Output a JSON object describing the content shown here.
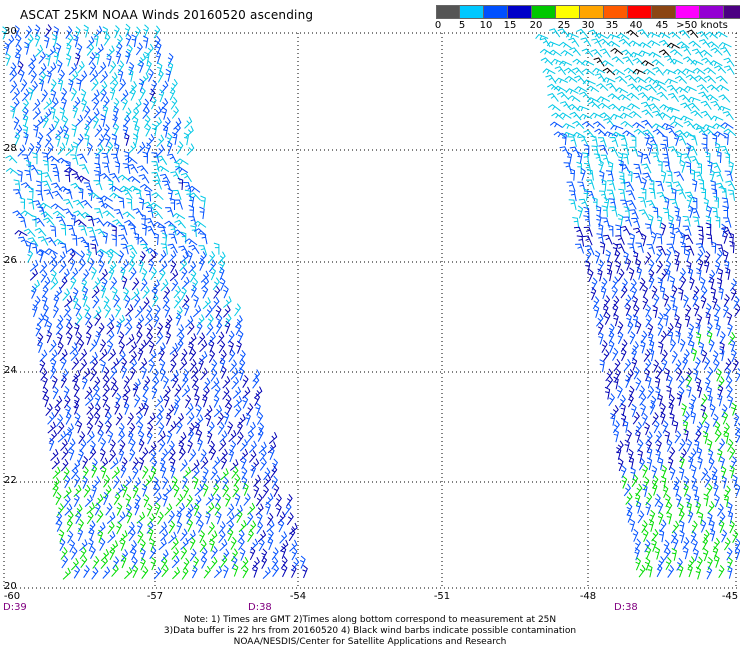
{
  "title": "ASCAT 25KM NOAA Winds 20160520 ascending",
  "legend": {
    "colors": [
      "#555555",
      "#00c8ff",
      "#0050ff",
      "#0000c8",
      "#00c800",
      "#ffff00",
      "#ffa500",
      "#ff5a00",
      "#ff0000",
      "#8b4513",
      "#ff00ff",
      "#9400d3",
      "#4b0082"
    ],
    "labels": [
      "0",
      "5",
      "10",
      "15",
      "20",
      "25",
      "30",
      "35",
      "40",
      "45",
      ">50 knots"
    ]
  },
  "map": {
    "lat_labels": [
      "30",
      "28",
      "26",
      "24",
      "22",
      "20"
    ],
    "lon_labels": [
      "-60",
      "-57",
      "-54",
      "-51",
      "-48",
      "-45"
    ],
    "pass_times": [
      "D:39",
      "D:38",
      "D:38"
    ],
    "barb_colors": {
      "light": "#00c8e6",
      "medium": "#0050ff",
      "dark": "#0000b4",
      "green": "#00dc00",
      "contamination": "#000000"
    }
  },
  "notes": {
    "line1": "Note: 1) Times are GMT 2)Times along bottom correspond to measurement at 25N",
    "line2": "3)Data buffer is 22 hrs from 20160520 4) Black wind barbs indicate possible contamination",
    "line3": "NOAA/NESDIS/Center for Satellite Applications and Research"
  }
}
